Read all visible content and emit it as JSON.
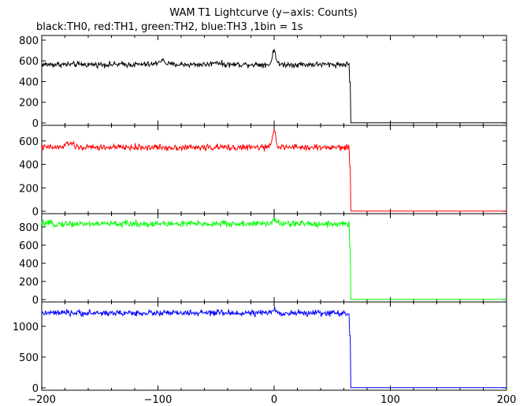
{
  "chart_data": {
    "type": "line",
    "title": "WAM T1 Lightcurve (y−axis: Counts)",
    "subtitle": "black:TH0, red:TH1, green:TH2, blue:TH3 ,1bin = 1s",
    "xlim": [
      -200,
      200
    ],
    "x_ticks": [
      -200,
      -100,
      0,
      100,
      200
    ],
    "x_tick_labels": [
      "−200",
      "−100",
      "0",
      "100",
      "200"
    ],
    "panels": [
      {
        "series_key": "TH0",
        "color": "#000000",
        "ylim": [
          0,
          830
        ],
        "y_ticks": [
          0,
          200,
          400,
          600,
          800
        ],
        "baseline": 565,
        "noise": 22,
        "peaks": [
          {
            "x": 0,
            "amp": 145,
            "width": 2
          },
          {
            "x": -97,
            "amp": 40,
            "width": 4
          },
          {
            "x": -50,
            "amp": 25,
            "width": 4
          }
        ],
        "drop_x": 65,
        "after_value": 2
      },
      {
        "series_key": "TH1",
        "color": "#ff0000",
        "ylim": [
          0,
          720
        ],
        "y_ticks": [
          0,
          200,
          400,
          600
        ],
        "baseline": 545,
        "noise": 22,
        "peaks": [
          {
            "x": 0,
            "amp": 160,
            "width": 2
          },
          {
            "x": -176,
            "amp": 40,
            "width": 4
          }
        ],
        "drop_x": 65,
        "after_value": 2
      },
      {
        "series_key": "TH2",
        "color": "#00ff00",
        "ylim": [
          0,
          930
        ],
        "y_ticks": [
          0,
          200,
          400,
          600,
          800
        ],
        "baseline": 835,
        "noise": 30,
        "peaks": [
          {
            "x": 0,
            "amp": 60,
            "width": 2
          }
        ],
        "drop_x": 65,
        "after_value": 2
      },
      {
        "series_key": "TH3",
        "color": "#0000ff",
        "ylim": [
          0,
          1370
        ],
        "y_ticks": [
          0,
          500,
          1000
        ],
        "baseline": 1215,
        "noise": 40,
        "peaks": [
          {
            "x": 0,
            "amp": 60,
            "width": 2
          }
        ],
        "drop_x": 65,
        "after_value": 2
      }
    ]
  }
}
